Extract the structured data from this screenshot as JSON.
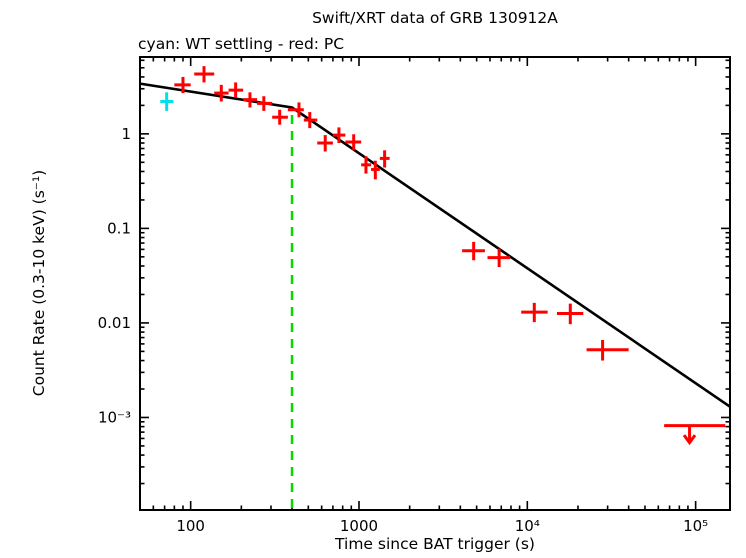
{
  "title": "Swift/XRT data of GRB 130912A",
  "subtitle": "cyan: WT settling - red: PC",
  "xlabel": "Time since BAT trigger (s)",
  "ylabel": "Count Rate (0.3-10 keV) (s⁻¹)",
  "colors": {
    "pc": "#ff0000",
    "wt_settling": "#00e0e8",
    "model_line": "#000000",
    "break_marker": "#00dd00",
    "frame": "#000000",
    "background": "#ffffff"
  },
  "chart_data": {
    "type": "scatter",
    "title": "Swift/XRT data of GRB 130912A",
    "xlabel": "Time since BAT trigger (s)",
    "ylabel": "Count Rate (0.3-10 keV) (s⁻¹)",
    "xscale": "log",
    "yscale": "log",
    "xlim": [
      50,
      160000
    ],
    "ylim": [
      0.000105,
      6.5
    ],
    "grid": false,
    "legend": "none",
    "xticks": [
      {
        "value": 100,
        "label": "100"
      },
      {
        "value": 1000,
        "label": "1000"
      },
      {
        "value": 10000,
        "label": "10⁴"
      },
      {
        "value": 100000,
        "label": "10⁵"
      }
    ],
    "yticks": [
      {
        "value": 1,
        "label": "1"
      },
      {
        "value": 0.1,
        "label": "0.1"
      },
      {
        "value": 0.01,
        "label": "0.01"
      },
      {
        "value": 0.001,
        "label": "10⁻³"
      }
    ],
    "series": [
      {
        "name": "WT settling",
        "color_key": "wt_settling",
        "points": [
          {
            "t": 72,
            "t_lo": 66,
            "t_hi": 79,
            "rate": 2.2,
            "rate_lo": 1.75,
            "rate_hi": 2.75
          }
        ]
      },
      {
        "name": "PC",
        "color_key": "pc",
        "points": [
          {
            "t": 90,
            "t_lo": 80,
            "t_hi": 100,
            "rate": 3.3,
            "rate_lo": 2.7,
            "rate_hi": 4.0
          },
          {
            "t": 120,
            "t_lo": 105,
            "t_hi": 138,
            "rate": 4.3,
            "rate_lo": 3.5,
            "rate_hi": 5.2
          },
          {
            "t": 152,
            "t_lo": 138,
            "t_hi": 168,
            "rate": 2.7,
            "rate_lo": 2.2,
            "rate_hi": 3.3
          },
          {
            "t": 185,
            "t_lo": 168,
            "t_hi": 205,
            "rate": 2.9,
            "rate_lo": 2.4,
            "rate_hi": 3.5
          },
          {
            "t": 225,
            "t_lo": 205,
            "t_hi": 248,
            "rate": 2.3,
            "rate_lo": 1.9,
            "rate_hi": 2.75
          },
          {
            "t": 272,
            "t_lo": 248,
            "t_hi": 305,
            "rate": 2.1,
            "rate_lo": 1.75,
            "rate_hi": 2.5
          },
          {
            "t": 338,
            "t_lo": 305,
            "t_hi": 378,
            "rate": 1.5,
            "rate_lo": 1.25,
            "rate_hi": 1.8
          },
          {
            "t": 440,
            "t_lo": 378,
            "t_hi": 470,
            "rate": 1.8,
            "rate_lo": 1.5,
            "rate_hi": 2.15
          },
          {
            "t": 510,
            "t_lo": 470,
            "t_hi": 565,
            "rate": 1.4,
            "rate_lo": 1.15,
            "rate_hi": 1.7
          },
          {
            "t": 630,
            "t_lo": 565,
            "t_hi": 700,
            "rate": 0.8,
            "rate_lo": 0.65,
            "rate_hi": 0.97
          },
          {
            "t": 760,
            "t_lo": 700,
            "t_hi": 830,
            "rate": 0.97,
            "rate_lo": 0.8,
            "rate_hi": 1.17
          },
          {
            "t": 930,
            "t_lo": 830,
            "t_hi": 1030,
            "rate": 0.82,
            "rate_lo": 0.67,
            "rate_hi": 0.99
          },
          {
            "t": 1100,
            "t_lo": 1030,
            "t_hi": 1180,
            "rate": 0.47,
            "rate_lo": 0.38,
            "rate_hi": 0.58
          },
          {
            "t": 1250,
            "t_lo": 1180,
            "t_hi": 1330,
            "rate": 0.42,
            "rate_lo": 0.33,
            "rate_hi": 0.52
          },
          {
            "t": 1420,
            "t_lo": 1330,
            "t_hi": 1520,
            "rate": 0.55,
            "rate_lo": 0.44,
            "rate_hi": 0.67
          },
          {
            "t": 4800,
            "t_lo": 4100,
            "t_hi": 5600,
            "rate": 0.058,
            "rate_lo": 0.046,
            "rate_hi": 0.072
          },
          {
            "t": 6800,
            "t_lo": 5800,
            "t_hi": 7900,
            "rate": 0.049,
            "rate_lo": 0.039,
            "rate_hi": 0.061
          },
          {
            "t": 11000,
            "t_lo": 9200,
            "t_hi": 13200,
            "rate": 0.013,
            "rate_lo": 0.0102,
            "rate_hi": 0.0163
          },
          {
            "t": 18000,
            "t_lo": 15000,
            "t_hi": 21500,
            "rate": 0.0126,
            "rate_lo": 0.0097,
            "rate_hi": 0.016
          },
          {
            "t": 28000,
            "t_lo": 22500,
            "t_hi": 40000,
            "rate": 0.0052,
            "rate_lo": 0.004,
            "rate_hi": 0.0066
          }
        ]
      }
    ],
    "upper_limits": [
      {
        "t": 92000,
        "t_lo": 65000,
        "t_hi": 150000,
        "rate": 0.00082,
        "color_key": "pc"
      }
    ],
    "model_line": {
      "color_key": "model_line",
      "vertices": [
        {
          "t": 50,
          "rate": 3.4
        },
        {
          "t": 400,
          "rate": 1.9
        },
        {
          "t": 160000,
          "rate": 0.0013
        }
      ]
    },
    "break_time_s": 400
  }
}
